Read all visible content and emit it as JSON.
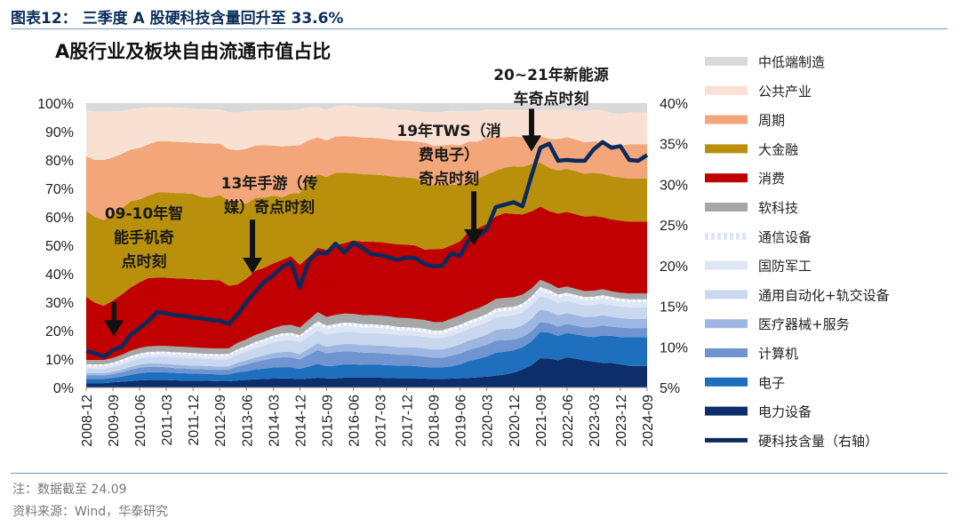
{
  "figure": {
    "title": "图表12：  三季度 A 股硬科技含量回升至 33.6%",
    "note": "注：数据截至 24.09",
    "source": "资料来源：Wind，华泰研究"
  },
  "chart_data": {
    "type": "area",
    "title": "A股行业及板块自由流通市值占比",
    "x": [
      "2008-12",
      "2009-03",
      "2009-06",
      "2009-09",
      "2009-12",
      "2010-03",
      "2010-06",
      "2010-09",
      "2010-12",
      "2011-03",
      "2011-06",
      "2011-09",
      "2011-12",
      "2012-03",
      "2012-06",
      "2012-09",
      "2012-12",
      "2013-03",
      "2013-06",
      "2013-09",
      "2013-12",
      "2014-03",
      "2014-06",
      "2014-09",
      "2014-12",
      "2015-03",
      "2015-06",
      "2015-09",
      "2015-12",
      "2016-03",
      "2016-06",
      "2016-09",
      "2016-12",
      "2017-03",
      "2017-06",
      "2017-09",
      "2017-12",
      "2018-03",
      "2018-06",
      "2018-09",
      "2018-12",
      "2019-03",
      "2019-06",
      "2019-09",
      "2019-12",
      "2020-03",
      "2020-06",
      "2020-09",
      "2020-12",
      "2021-03",
      "2021-06",
      "2021-09",
      "2021-12",
      "2022-03",
      "2022-06",
      "2022-09",
      "2022-12",
      "2023-03",
      "2023-06",
      "2023-09",
      "2023-12",
      "2024-03",
      "2024-06",
      "2024-09"
    ],
    "x_tick_labels": [
      "2008-12",
      "2009-09",
      "2010-06",
      "2011-03",
      "2011-12",
      "2012-09",
      "2013-06",
      "2014-03",
      "2014-12",
      "2015-09",
      "2016-06",
      "2017-03",
      "2017-12",
      "2018-09",
      "2019-06",
      "2020-03",
      "2020-12",
      "2021-09",
      "2022-06",
      "2023-03",
      "2023-12",
      "2024-09"
    ],
    "stack_order_bottom_to_top": [
      "电力设备",
      "电子",
      "计算机",
      "医疗器械+服务",
      "通用自动化+轨交设备",
      "国防军工",
      "通信设备",
      "软科技",
      "消费",
      "大金融",
      "周期",
      "公共产业",
      "中低端制造"
    ],
    "series": [
      {
        "name": "电力设备",
        "color": "#0d2d6b",
        "values": [
          1.5,
          1.5,
          1.5,
          1.8,
          2,
          2.2,
          2.5,
          2.6,
          2.6,
          2.6,
          2.5,
          2.4,
          2.4,
          2.4,
          2.3,
          2.2,
          2.2,
          2.4,
          2.6,
          2.8,
          2.9,
          3,
          3,
          3,
          2.8,
          3,
          3.2,
          3,
          3,
          3.2,
          3.2,
          3.2,
          3.2,
          3.2,
          3.1,
          3,
          3,
          3,
          2.9,
          2.8,
          2.8,
          2.9,
          3,
          3.1,
          3.3,
          3.5,
          3.9,
          4.3,
          5,
          6,
          7.5,
          10,
          10,
          9.5,
          10.5,
          10,
          9.5,
          9,
          8.5,
          8.5,
          8,
          7.5,
          7.5,
          7.5
        ]
      },
      {
        "name": "电子",
        "color": "#1f6fbf",
        "values": [
          1.5,
          1.5,
          1.5,
          1.6,
          1.8,
          2.2,
          2.5,
          2.8,
          2.8,
          2.7,
          2.6,
          2.6,
          2.5,
          2.4,
          2.4,
          2.4,
          2.4,
          2.8,
          3,
          3.4,
          3.6,
          3.8,
          3.8,
          3.8,
          3.4,
          4,
          4.5,
          4,
          4.2,
          4.4,
          4.4,
          4.2,
          4.2,
          4.2,
          4.2,
          4.2,
          4.2,
          4,
          3.8,
          3.8,
          3.8,
          4,
          4.5,
          5.5,
          6,
          6.5,
          7.5,
          7.5,
          7.5,
          7.5,
          8,
          9,
          9,
          8.5,
          8.5,
          8.5,
          8.5,
          8.5,
          9.5,
          9.5,
          9.5,
          10,
          10,
          10
        ]
      },
      {
        "name": "计算机",
        "color": "#6f94d0",
        "values": [
          1.2,
          1.2,
          1.2,
          1.3,
          1.5,
          1.8,
          1.9,
          1.9,
          1.9,
          1.8,
          1.7,
          1.7,
          1.6,
          1.6,
          1.6,
          1.6,
          1.7,
          2,
          2.4,
          2.6,
          2.9,
          3.2,
          3.3,
          3.3,
          3.2,
          4,
          4.5,
          4.2,
          4.5,
          4.2,
          4.2,
          4,
          4,
          3.8,
          3.8,
          3.5,
          3.5,
          3.5,
          3.4,
          3.2,
          3.2,
          3.5,
          3.5,
          3.6,
          3.7,
          3.8,
          4,
          3.8,
          3.6,
          3.4,
          3.4,
          3.3,
          3.3,
          3.2,
          3.1,
          3,
          3,
          3.5,
          3.5,
          3.2,
          3.3,
          3.2,
          3.2,
          3.2
        ]
      },
      {
        "name": "医疗器械+服务",
        "color": "#9db7e2",
        "values": [
          0.8,
          0.8,
          0.8,
          0.8,
          0.9,
          1,
          1.1,
          1.2,
          1.2,
          1.2,
          1.2,
          1.2,
          1.2,
          1.2,
          1.2,
          1.2,
          1.2,
          1.3,
          1.4,
          1.5,
          1.6,
          1.7,
          1.8,
          1.8,
          1.8,
          2,
          2.2,
          2.2,
          2.3,
          2.4,
          2.4,
          2.4,
          2.4,
          2.5,
          2.5,
          2.5,
          2.5,
          2.6,
          2.7,
          2.7,
          2.7,
          2.8,
          2.9,
          3,
          3.1,
          3.3,
          3.5,
          3.7,
          3.8,
          4,
          4.2,
          4.3,
          4.1,
          4,
          3.8,
          3.7,
          3.6,
          3.6,
          3.5,
          3.4,
          3.3,
          3.2,
          3.2,
          3.2
        ]
      },
      {
        "name": "通用自动化+轨交设备",
        "color": "#c9d8ef",
        "values": [
          1.5,
          1.5,
          1.5,
          1.6,
          1.8,
          2,
          2.1,
          2.2,
          2.3,
          2.5,
          2.6,
          2.6,
          2.6,
          2.5,
          2.5,
          2.5,
          2.5,
          2.7,
          3,
          3.2,
          3.4,
          3.6,
          3.8,
          4,
          3.9,
          4,
          4.2,
          4,
          4,
          4,
          4,
          4,
          4,
          4,
          3.9,
          3.9,
          3.8,
          3.8,
          3.8,
          3.7,
          3.7,
          3.8,
          3.8,
          3.8,
          3.9,
          4,
          4.1,
          4.2,
          4.3,
          4.4,
          4.5,
          4.5,
          4.4,
          4.3,
          4.2,
          4.1,
          4.1,
          4.1,
          4.1,
          4,
          4,
          4,
          4,
          4
        ]
      },
      {
        "name": "国防军工",
        "color": "#dce6f5",
        "values": [
          0.8,
          0.8,
          0.8,
          0.8,
          0.9,
          1,
          1,
          1,
          1,
          1,
          1,
          1,
          1,
          1,
          1,
          1,
          1,
          1.1,
          1.2,
          1.3,
          1.4,
          1.5,
          1.6,
          1.6,
          1.6,
          1.8,
          2,
          1.9,
          2,
          2,
          1.9,
          1.9,
          1.9,
          1.8,
          1.8,
          1.7,
          1.7,
          1.6,
          1.6,
          1.5,
          1.5,
          1.6,
          1.6,
          1.6,
          1.6,
          1.7,
          1.8,
          1.9,
          1.9,
          1.9,
          2,
          2.1,
          2,
          1.9,
          1.9,
          1.9,
          1.9,
          1.9,
          1.9,
          1.9,
          1.8,
          1.8,
          1.8,
          1.8
        ]
      },
      {
        "name": "通信设备",
        "color": "#ffffff",
        "values": [
          0.8,
          0.8,
          0.8,
          0.8,
          0.8,
          0.8,
          0.8,
          0.8,
          0.8,
          0.8,
          0.8,
          0.8,
          0.8,
          0.8,
          0.8,
          0.8,
          0.8,
          0.8,
          0.8,
          0.8,
          0.8,
          0.8,
          0.8,
          0.8,
          0.8,
          1,
          1,
          1,
          1,
          1,
          1,
          1,
          1,
          1,
          1,
          1,
          1,
          1,
          1,
          1,
          1,
          1,
          1,
          1,
          1,
          1,
          1,
          1,
          1,
          1,
          1,
          1,
          1,
          1,
          1,
          1,
          1,
          1,
          1,
          1,
          1,
          1,
          1,
          1
        ]
      },
      {
        "name": "软科技",
        "color": "#a6a6a6",
        "values": [
          1.5,
          1.5,
          1.5,
          1.6,
          1.7,
          1.8,
          1.9,
          2,
          2,
          2,
          2,
          2,
          2,
          2,
          2,
          2,
          2,
          2.2,
          2.3,
          2.4,
          2.5,
          2.5,
          2.6,
          2.7,
          2.6,
          2.8,
          3,
          2.9,
          3,
          3,
          3,
          3,
          3,
          3,
          3,
          3,
          3,
          2.9,
          2.9,
          2.8,
          2.8,
          2.9,
          3,
          3,
          3,
          3.1,
          3.2,
          3.2,
          3.2,
          3,
          2.7,
          2.5,
          2.3,
          2.2,
          2.2,
          2.1,
          2.1,
          2.1,
          2.1,
          2,
          2,
          2,
          2,
          2
        ]
      },
      {
        "name": "消费",
        "color": "#c00000",
        "values": [
          22,
          20,
          19,
          20,
          21,
          22,
          23,
          24,
          24,
          24,
          24,
          24,
          24,
          24,
          24,
          24,
          22,
          20,
          21,
          22,
          22,
          22,
          22,
          23,
          21,
          21,
          21,
          22,
          23,
          23,
          24,
          24,
          24,
          24,
          24,
          24,
          24,
          24,
          23,
          24,
          24,
          24,
          24,
          26,
          26,
          26,
          27,
          28,
          28,
          27,
          26,
          25,
          25,
          26,
          26,
          26,
          26,
          26,
          25,
          25,
          25,
          25,
          25,
          25
        ]
      },
      {
        "name": "大金融",
        "color": "#b8900b",
        "values": [
          30,
          30,
          30,
          30,
          30,
          30,
          29,
          29,
          30,
          30,
          30,
          30,
          30,
          29,
          29,
          30,
          30,
          28,
          26,
          25,
          24,
          23,
          21,
          21,
          24,
          26,
          24,
          24,
          24,
          23,
          22,
          22,
          22,
          22,
          22,
          22,
          22,
          22,
          22,
          21,
          21,
          20,
          18,
          16,
          16,
          16,
          15,
          15,
          16,
          16,
          16,
          15,
          15,
          15,
          15,
          15,
          15,
          15,
          15,
          15,
          15,
          15,
          15,
          15
        ]
      },
      {
        "name": "周期",
        "color": "#f2a679",
        "values": [
          19,
          20,
          21,
          20,
          19,
          18,
          18,
          18,
          18,
          18,
          18,
          18,
          18,
          19,
          19,
          18,
          18,
          18,
          19,
          18,
          18,
          17,
          17,
          16,
          16,
          13,
          12,
          12,
          12,
          12,
          12,
          12,
          12,
          12,
          12,
          12,
          12,
          12,
          13,
          13,
          13,
          13,
          13,
          13,
          12,
          12,
          11,
          10,
          10,
          10,
          9,
          9,
          10,
          11,
          11,
          11,
          11,
          11,
          11,
          11,
          11,
          12,
          12,
          12
        ]
      },
      {
        "name": "公共产业",
        "color": "#f8e1d3",
        "values": [
          16,
          17,
          17,
          16,
          15,
          14,
          14,
          13,
          12,
          12,
          12,
          12,
          12,
          12,
          12,
          12,
          13,
          13,
          13,
          12,
          12,
          12,
          12,
          12,
          12,
          11,
          10,
          10,
          10,
          10,
          10,
          10,
          10,
          10,
          10,
          10,
          10,
          10,
          10,
          11,
          11,
          11,
          11,
          10,
          10,
          9,
          9,
          9,
          9,
          9,
          9,
          9,
          10,
          10,
          10,
          10,
          11,
          11,
          11,
          11,
          11,
          11,
          11,
          11
        ]
      },
      {
        "name": "中低端制造",
        "color": "#d9d9d9",
        "values": [
          2.6,
          2.9,
          2.9,
          2.9,
          2.7,
          2.2,
          1.7,
          1.5,
          1.4,
          1.4,
          1.6,
          1.7,
          1.9,
          2.1,
          2.2,
          2.3,
          3.2,
          3.2,
          2.8,
          2.5,
          2.5,
          2.4,
          2.5,
          2.3,
          2.1,
          1.4,
          1.2,
          2.3,
          1,
          0.8,
          0.9,
          1.3,
          1.3,
          1.5,
          1.9,
          2.2,
          2.3,
          2.6,
          2.9,
          3,
          2.9,
          2.5,
          2.7,
          2.4,
          2.5,
          2.1,
          2.1,
          2.3,
          2.2,
          2.4,
          2.5,
          2.3,
          2.4,
          2.5,
          1.9,
          2.7,
          2.7,
          2.3,
          2.5,
          3.5,
          3.8,
          3.3,
          3.3,
          3.3
        ]
      }
    ],
    "line_series": {
      "name": "硬科技含量（右轴）",
      "color": "#0b2a5c",
      "axis": "right",
      "values": [
        9.5,
        9.2,
        8.8,
        9.6,
        10,
        11.5,
        12.3,
        13.2,
        14.3,
        14.1,
        13.9,
        13.8,
        13.6,
        13.5,
        13.3,
        13.2,
        12.8,
        14,
        15.5,
        16.8,
        18,
        18.8,
        19.8,
        20.4,
        17.3,
        20.6,
        21.6,
        21.5,
        22.7,
        21.6,
        22.8,
        22.2,
        21.4,
        21.3,
        21,
        20.7,
        21,
        20.9,
        20.2,
        19.9,
        20,
        21.5,
        21.2,
        23.2,
        23.6,
        24.5,
        27.2,
        27.5,
        27.8,
        27.3,
        31,
        34.5,
        35,
        32.9,
        33,
        32.9,
        32.9,
        34.3,
        35.2,
        34.5,
        34.7,
        33,
        32.9,
        33.6
      ]
    },
    "y_left": {
      "min": 0,
      "max": 100,
      "tick_labels": [
        "0%",
        "10%",
        "20%",
        "30%",
        "40%",
        "50%",
        "60%",
        "70%",
        "80%",
        "90%",
        "100%"
      ]
    },
    "y_right": {
      "min": 5,
      "max": 40,
      "tick_labels": [
        "5%",
        "10%",
        "15%",
        "20%",
        "25%",
        "30%",
        "35%",
        "40%"
      ]
    },
    "annotations": [
      {
        "lines": [
          "09-10年智",
          "能手机奇",
          "点时刻"
        ],
        "x_index": 3,
        "arrow_to": 18,
        "arrow_from": 30
      },
      {
        "lines": [
          "13年手游（传",
          "媒）奇点时刻"
        ],
        "x_index": 18,
        "arrow_to": 40,
        "arrow_from": 59
      },
      {
        "lines": [
          "19年TWS（消",
          "费电子）",
          "奇点时刻"
        ],
        "x_index": 44,
        "arrow_to": 50,
        "arrow_from": 69
      },
      {
        "lines": [
          "20~21年新能源",
          "车奇点时刻"
        ],
        "x_index": 51,
        "arrow_to": 83,
        "arrow_from": 98
      }
    ],
    "legend": [
      {
        "name": "中低端制造",
        "color": "#d9d9d9",
        "type": "area"
      },
      {
        "name": "公共产业",
        "color": "#f8e1d3",
        "type": "area"
      },
      {
        "name": "周期",
        "color": "#f2a679",
        "type": "area"
      },
      {
        "name": "大金融",
        "color": "#b8900b",
        "type": "area"
      },
      {
        "name": "消费",
        "color": "#c00000",
        "type": "area"
      },
      {
        "name": "软科技",
        "color": "#a6a6a6",
        "type": "area"
      },
      {
        "name": "通信设备",
        "color": "#dce6f5",
        "type": "dotted"
      },
      {
        "name": "国防军工",
        "color": "#dce6f5",
        "type": "area"
      },
      {
        "name": "通用自动化+轨交设备",
        "color": "#c9d8ef",
        "type": "area"
      },
      {
        "name": "医疗器械+服务",
        "color": "#9db7e2",
        "type": "area"
      },
      {
        "name": "计算机",
        "color": "#6f94d0",
        "type": "area"
      },
      {
        "name": "电子",
        "color": "#1f6fbf",
        "type": "area"
      },
      {
        "name": "电力设备",
        "color": "#0d2d6b",
        "type": "area"
      },
      {
        "name": "硬科技含量（右轴）",
        "color": "#0b2a5c",
        "type": "line"
      }
    ],
    "legend_position": "right"
  }
}
